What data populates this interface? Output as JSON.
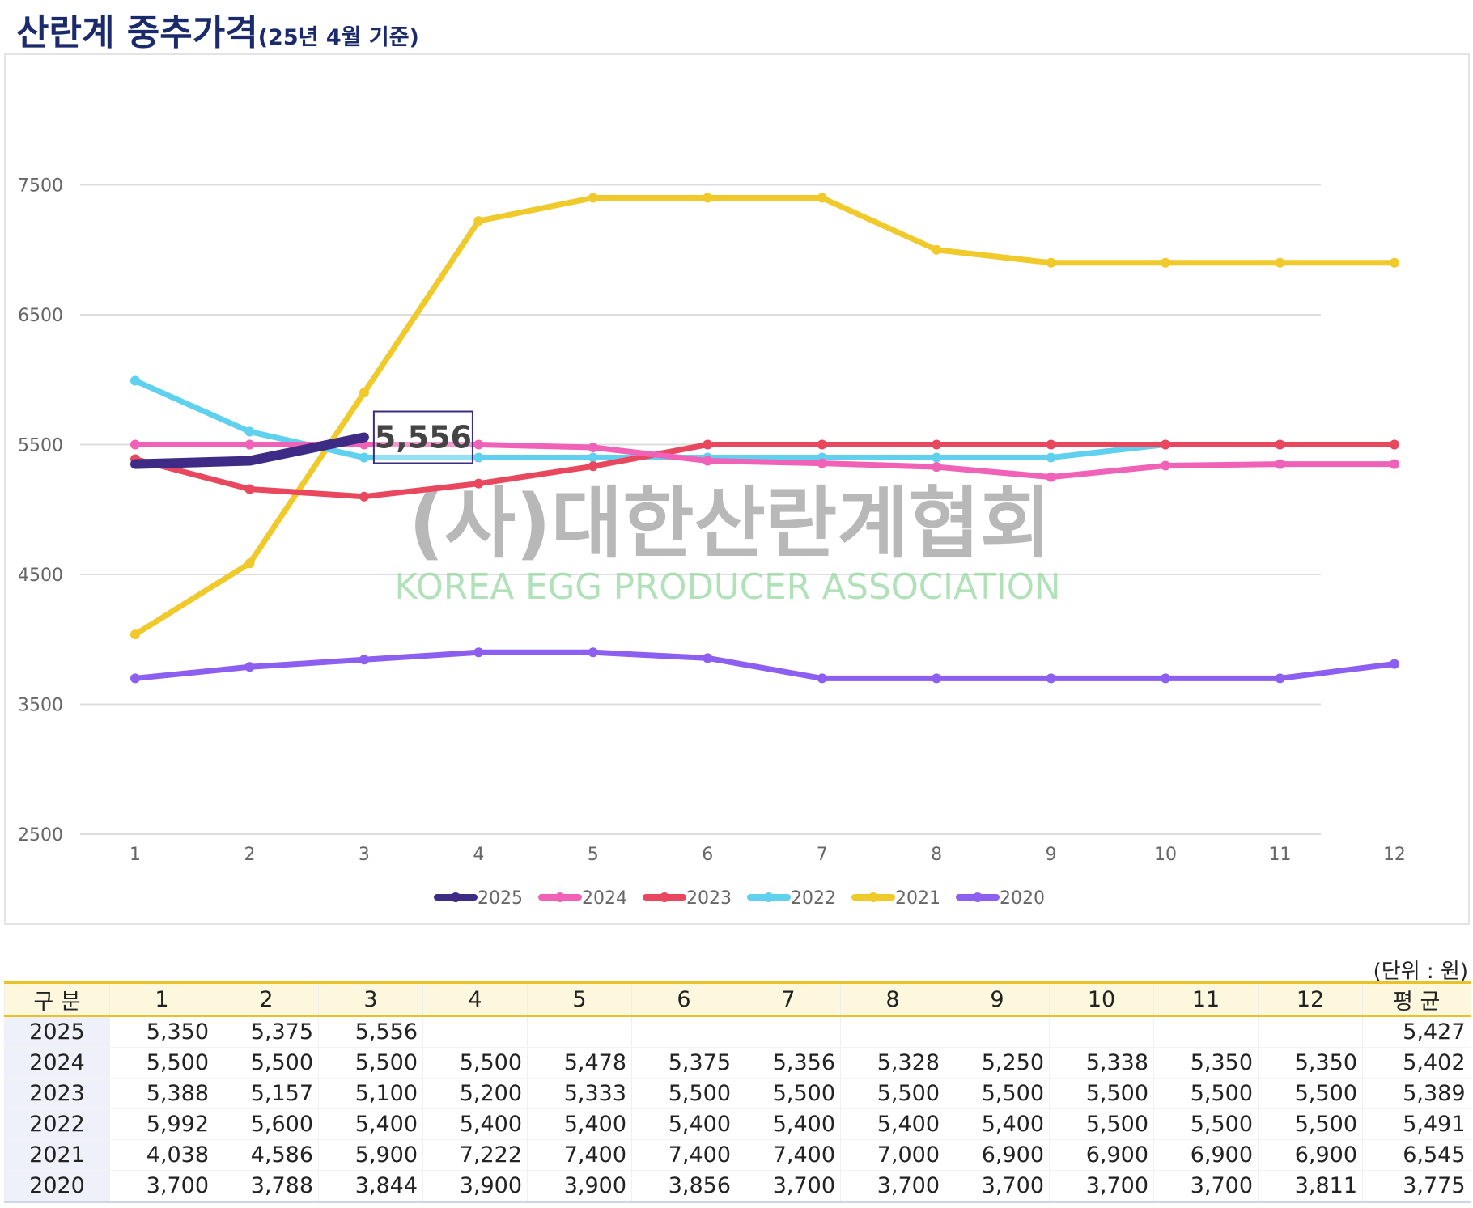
{
  "title": "산란계 중추가격",
  "subtitle": "(25년 4월 기준)",
  "watermark": {
    "korean": "(사)대한산란계협회",
    "english": "KOREA EGG PRODUCER ASSOCIATION"
  },
  "unit_note": "(단위 : 원)",
  "chart_data": {
    "type": "line",
    "x": [
      1,
      2,
      3,
      4,
      5,
      6,
      7,
      8,
      9,
      10,
      11,
      12
    ],
    "x_tick_labels": [
      "1",
      "2",
      "3",
      "4",
      "5",
      "6",
      "7",
      "8",
      "9",
      "10",
      "11",
      "12"
    ],
    "y_ticks": [
      2500,
      3500,
      4500,
      5500,
      6500,
      7500
    ],
    "y_tick_labels": [
      "2500",
      "3500",
      "4500",
      "5500",
      "6500",
      "7500"
    ],
    "ylim": [
      2500,
      8500
    ],
    "grid": true,
    "legend_position": "bottom-center",
    "annotation": {
      "series": "2025",
      "x": 3,
      "value": 5556,
      "label": "5,556"
    },
    "series": [
      {
        "name": "2025",
        "color": "#3d2b85",
        "values": [
          5350,
          5375,
          5556,
          null,
          null,
          null,
          null,
          null,
          null,
          null,
          null,
          null
        ]
      },
      {
        "name": "2024",
        "color": "#f062b8",
        "values": [
          5500,
          5500,
          5500,
          5500,
          5478,
          5375,
          5356,
          5328,
          5250,
          5338,
          5350,
          5350
        ]
      },
      {
        "name": "2023",
        "color": "#e8475e",
        "values": [
          5388,
          5157,
          5100,
          5200,
          5333,
          5500,
          5500,
          5500,
          5500,
          5500,
          5500,
          5500
        ]
      },
      {
        "name": "2022",
        "color": "#5fd0ee",
        "values": [
          5992,
          5600,
          5400,
          5400,
          5400,
          5400,
          5400,
          5400,
          5400,
          5500,
          5500,
          5500
        ]
      },
      {
        "name": "2021",
        "color": "#f0c92b",
        "values": [
          4038,
          4586,
          5900,
          7222,
          7400,
          7400,
          7400,
          7000,
          6900,
          6900,
          6900,
          6900
        ]
      },
      {
        "name": "2020",
        "color": "#8c5ff0",
        "values": [
          3700,
          3788,
          3844,
          3900,
          3900,
          3856,
          3700,
          3700,
          3700,
          3700,
          3700,
          3811
        ]
      }
    ]
  },
  "table": {
    "headers": [
      "구 분",
      "1",
      "2",
      "3",
      "4",
      "5",
      "6",
      "7",
      "8",
      "9",
      "10",
      "11",
      "12",
      "평 균"
    ],
    "rows": [
      [
        "2025",
        "5,350",
        "5,375",
        "5,556",
        "",
        "",
        "",
        "",
        "",
        "",
        "",
        "",
        "",
        "5,427"
      ],
      [
        "2024",
        "5,500",
        "5,500",
        "5,500",
        "5,500",
        "5,478",
        "5,375",
        "5,356",
        "5,328",
        "5,250",
        "5,338",
        "5,350",
        "5,350",
        "5,402"
      ],
      [
        "2023",
        "5,388",
        "5,157",
        "5,100",
        "5,200",
        "5,333",
        "5,500",
        "5,500",
        "5,500",
        "5,500",
        "5,500",
        "5,500",
        "5,500",
        "5,389"
      ],
      [
        "2022",
        "5,992",
        "5,600",
        "5,400",
        "5,400",
        "5,400",
        "5,400",
        "5,400",
        "5,400",
        "5,400",
        "5,500",
        "5,500",
        "5,500",
        "5,491"
      ],
      [
        "2021",
        "4,038",
        "4,586",
        "5,900",
        "7,222",
        "7,400",
        "7,400",
        "7,400",
        "7,000",
        "6,900",
        "6,900",
        "6,900",
        "6,900",
        "6,545"
      ],
      [
        "2020",
        "3,700",
        "3,788",
        "3,844",
        "3,900",
        "3,900",
        "3,856",
        "3,700",
        "3,700",
        "3,700",
        "3,700",
        "3,700",
        "3,811",
        "3,775"
      ]
    ]
  }
}
